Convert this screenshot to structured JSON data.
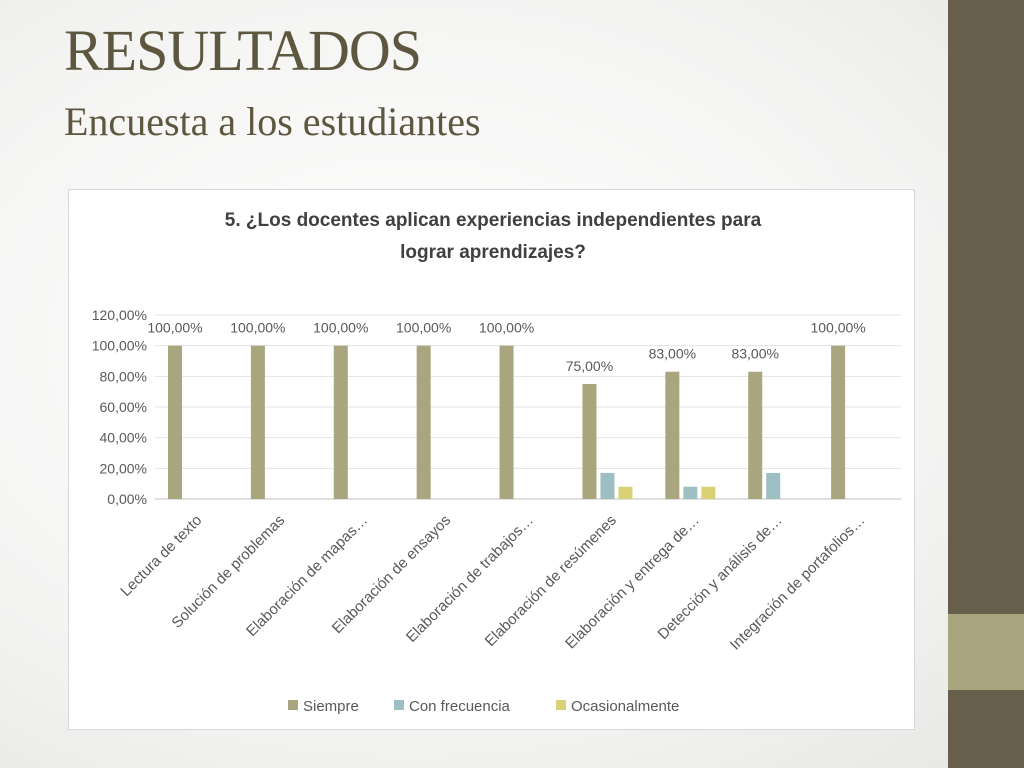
{
  "slide": {
    "title": "RESULTADOS",
    "subtitle": "Encuesta a los estudiantes"
  },
  "chart_data": {
    "type": "bar",
    "title_lines": [
      "5. ¿Los docentes aplican experiencias independientes para",
      "lograr aprendizajes?"
    ],
    "categories": [
      "Lectura de texto",
      "Solución de problemas",
      "Elaboración de mapas…",
      "Elaboración de ensayos",
      "Elaboración de trabajos…",
      "Elaboración de resúmenes",
      "Elaboración y entrega de…",
      "Detección y análisis de…",
      "Integración de portafolios…"
    ],
    "series": [
      {
        "name": "Siempre",
        "color": "#a9a57e",
        "values": [
          100,
          100,
          100,
          100,
          100,
          75,
          83,
          83,
          100
        ]
      },
      {
        "name": "Con frecuencia",
        "color": "#9dbfc3",
        "values": [
          0,
          0,
          0,
          0,
          0,
          17,
          8,
          17,
          0
        ]
      },
      {
        "name": "Ocasionalmente",
        "color": "#d8d274",
        "values": [
          0,
          0,
          0,
          0,
          0,
          8,
          8,
          0,
          0
        ]
      }
    ],
    "data_labels": [
      "100,00%",
      "100,00%",
      "100,00%",
      "100,00%",
      "100,00%",
      "75,00%",
      "83,00%",
      "83,00%",
      "100,00%"
    ],
    "y_ticks": [
      "0,00%",
      "20,00%",
      "40,00%",
      "60,00%",
      "80,00%",
      "100,00%",
      "120,00%"
    ],
    "ylim": [
      0,
      120
    ],
    "legend_position": "bottom",
    "grid": true
  }
}
